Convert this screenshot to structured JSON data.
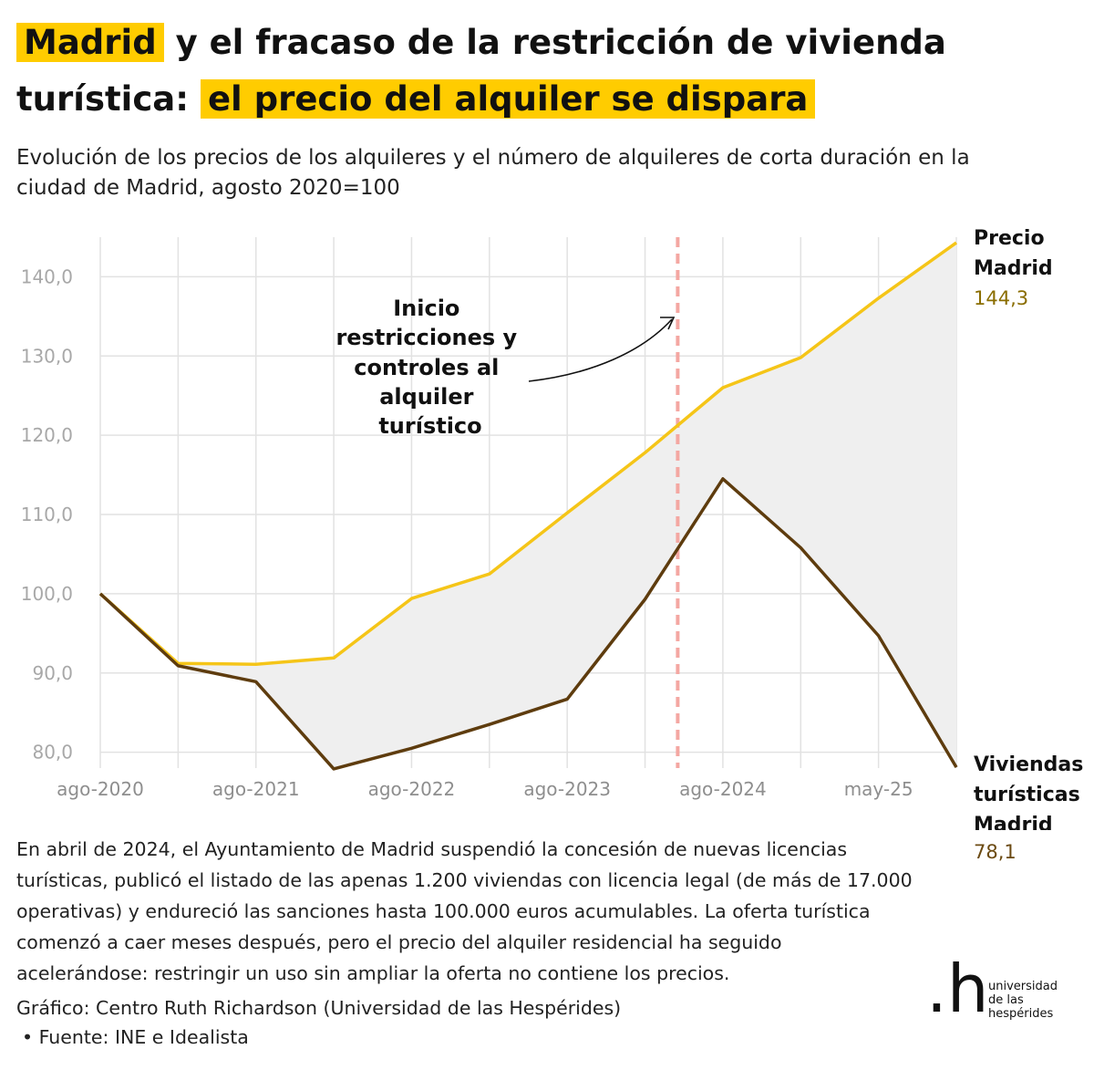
{
  "title": {
    "highlight_1": "Madrid",
    "text_1": " y el fracaso de la restricción de vivienda turística: ",
    "highlight_2": "el precio del alquiler se dispara"
  },
  "subtitle": "Evolución de los precios de los alquileres y el número de alquileres de corta duración en la ciudad de Madrid, agosto 2020=100",
  "chart_data": {
    "type": "line",
    "x": [
      "ago-2020",
      "feb-2021",
      "ago-2021",
      "feb-2022",
      "ago-2022",
      "feb-2023",
      "ago-2023",
      "feb-2024",
      "ago-2024",
      "feb-2025",
      "may-25",
      "nov-2025"
    ],
    "x_tick_labels": [
      "ago-2020",
      "ago-2021",
      "ago-2022",
      "ago-2023",
      "ago-2024",
      "may-25"
    ],
    "y_tick_labels": [
      "80,0",
      "90,0",
      "100,0",
      "110,0",
      "120,0",
      "130,0",
      "140,0"
    ],
    "ylim": [
      78,
      145
    ],
    "grid": true,
    "series": [
      {
        "name": "Precio Madrid",
        "color": "#f5c518",
        "values": [
          100.0,
          91.2,
          91.1,
          91.9,
          99.4,
          102.5,
          110.2,
          117.8,
          126.0,
          129.8,
          137.3,
          144.3
        ]
      },
      {
        "name": "Viviendas turísticas Madrid",
        "color": "#5e3c0e",
        "values": [
          100.0,
          90.9,
          88.9,
          77.9,
          80.5,
          83.5,
          86.7,
          99.3,
          114.5,
          105.8,
          94.7,
          78.1
        ]
      }
    ],
    "fill_between": {
      "color": "#efefef"
    },
    "marker_line": {
      "color": "#f4a7a2",
      "style": "dashed",
      "x_position_between": [
        "feb-2024",
        "ago-2024"
      ],
      "fraction": 0.42
    },
    "annotation": "Inicio restricciones y controles al alquiler turístico",
    "end_labels": {
      "precio": {
        "name_line1": "Precio",
        "name_line2": "Madrid",
        "value": "144,3",
        "value_color": "#8a6d00"
      },
      "viviendas": {
        "name_line1": "Viviendas",
        "name_line2": "turísticas",
        "name_line3": "Madrid",
        "value": "78,1",
        "value_color": "#6b4a12"
      }
    }
  },
  "note": "En abril de 2024, el Ayuntamiento de Madrid suspendió la concesión de nuevas licencias turísticas, publicó el listado de las apenas 1.200 viviendas con licencia legal (de más de 17.000 operativas) y endureció las sanciones hasta 100.000 euros acumulables. La oferta turística comenzó a caer meses después, pero el precio del alquiler residencial ha seguido acelerándose: restringir un uso sin ampliar la oferta no contiene los precios.",
  "credit": "Gráfico: Centro Ruth Richardson (Universidad de las Hespérides)",
  "source": "• Fuente: INE e Idealista",
  "logo": {
    "mark": ".h",
    "line1": "universidad",
    "line2": "de las",
    "line3": "hespérides"
  }
}
